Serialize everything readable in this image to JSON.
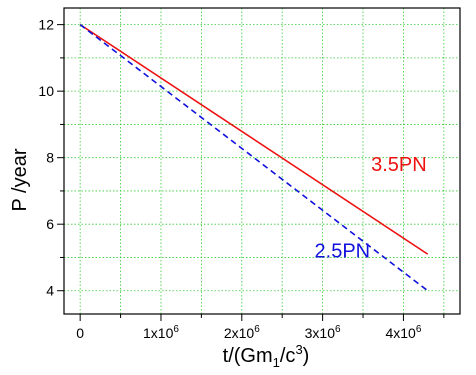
{
  "chart_data": {
    "type": "line",
    "xlabel": {
      "base": "t/(Gm",
      "sub": "1",
      "mid": "/c",
      "sup": "3",
      "end": ")"
    },
    "ylabel": "P /year",
    "xlim": [
      -200000,
      4700000
    ],
    "ylim": [
      3.3,
      12.5
    ],
    "x_ticks": [
      {
        "value": 0,
        "label": "0"
      },
      {
        "value": 1000000,
        "mant": "1x10",
        "exp": "6"
      },
      {
        "value": 2000000,
        "mant": "2x10",
        "exp": "6"
      },
      {
        "value": 3000000,
        "mant": "3x10",
        "exp": "6"
      },
      {
        "value": 4000000,
        "mant": "4x10",
        "exp": "6"
      }
    ],
    "y_ticks": [
      4,
      6,
      8,
      10,
      12
    ],
    "grid": true,
    "grid_color": "#33cc33",
    "series": [
      {
        "name": "3.5PN",
        "color": "#ee1111",
        "dash": "solid",
        "x": [
          0,
          4300000
        ],
        "y": [
          12.0,
          5.1
        ],
        "label_at": [
          3600000,
          7.6
        ]
      },
      {
        "name": "2.5PN",
        "color": "#1111dd",
        "dash": "dashed",
        "x": [
          0,
          4300000
        ],
        "y": [
          12.0,
          4.0
        ],
        "label_at": [
          2900000,
          5.0
        ]
      }
    ]
  }
}
